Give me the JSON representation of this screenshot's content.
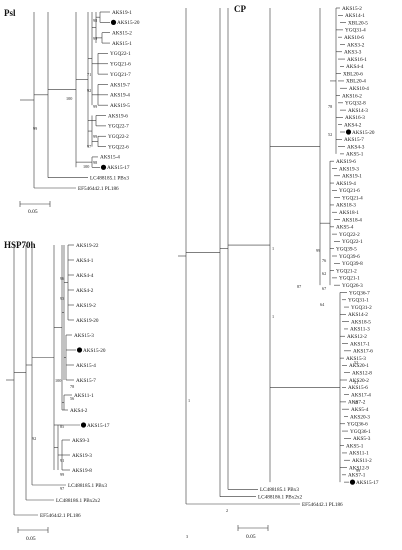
{
  "psl": {
    "title": "Psl",
    "leaves": [
      "AKS19-1",
      "AKS15-20",
      "AKS15-2",
      "AKS15-1",
      "YGQ22-1",
      "YGQ21-6",
      "YGQ21-7",
      "AKS19-7",
      "AKS19-4",
      "AKS19-5",
      "AKS19-6",
      "YGQ22-7",
      "YGQ22-2",
      "YGQ22-6",
      "AKS15-4",
      "AKS15-17",
      "LC488185.1 PBx3",
      "EF546442.1 PL186"
    ],
    "marked": [
      "AKS15-20",
      "AKS15-17"
    ],
    "bootstrap": [
      "98",
      "99",
      "71",
      "92",
      "99",
      "100",
      "99",
      "97",
      "98",
      "100",
      "99"
    ],
    "scale": "0.05"
  },
  "hsp70h": {
    "title": "HSP70h",
    "leaves": [
      "AKS19-22",
      "AKS4-1",
      "AKS4-4",
      "AKS4-2",
      "AKS19-2",
      "AKS19-20",
      "AKS15-3",
      "AKS15-20",
      "AKS15-4",
      "AKS15-7",
      "AKS11-1",
      "AKS4-2",
      "AKS15-17",
      "AKS9-3",
      "AKS19-3",
      "AKS19-8",
      "LC488185.1 PBx3",
      "LC488186.1 PBx2x2",
      "EF546442.1 PL186"
    ],
    "marked": [
      "AKS15-20",
      "AKS15-17"
    ],
    "bootstrap": [
      "96",
      "93",
      "100",
      "78",
      "56",
      "85",
      "91",
      "99",
      "97",
      "92"
    ],
    "scale": "0.05"
  },
  "cp": {
    "title": "CP",
    "leaves": [
      "AKS15-2",
      "AKS14-1",
      "XBL20-5",
      "YGQ31-4",
      "AKS10-6",
      "AKS3-2",
      "AKS3-3",
      "AKS16-1",
      "AKS4-4",
      "XBL20-6",
      "XBL20-4",
      "AKS10-4",
      "AKS16-2",
      "YGQ32-8",
      "AKS14-3",
      "AKS16-3",
      "AKS4-2",
      "AKS15-20",
      "AKS15-7",
      "AKS4-3",
      "AKS5-1",
      "AKS19-6",
      "AKS19-3",
      "AKS19-1",
      "AKS19-4",
      "YGQ21-6",
      "YGQ21-4",
      "AKS18-3",
      "AKS18-1",
      "AKS18-4",
      "AKS5-4",
      "YGQ22-2",
      "YGQ22-1",
      "YGQ39-5",
      "YGQ39-6",
      "YGQ39-8",
      "YGQ21-2",
      "YGQ21-1",
      "YGQ26-3",
      "YGQ36-7",
      "YGQ31-1",
      "YGQ31-2",
      "AKS14-2",
      "AKS18-5",
      "AKS11-3",
      "AKS12-2",
      "AKS17-1",
      "AKS17-6",
      "AKS15-3",
      "AKS20-1",
      "AKS12-8",
      "AKS20-2",
      "AKS15-6",
      "AKS17-4",
      "AKS7-2",
      "AKS5-4",
      "AKS20-3",
      "YGQ36-6",
      "YGQ36-1",
      "AKS5-3",
      "AKS5-1",
      "AKS11-1",
      "AKS11-2",
      "AKS12-9",
      "AKS7-1",
      "AKS15-17",
      "LC488185.1 PBx3",
      "LC488186.1 PBx2x2",
      "EF546442.1 PL186"
    ],
    "marked": [
      "AKS15-20",
      "AKS15-17"
    ],
    "bootstrap": [
      "78",
      "52",
      "99",
      "76",
      "62",
      "67",
      "64",
      "87",
      "1",
      "1",
      "1",
      "52",
      "51",
      "58",
      "99",
      "3",
      "2"
    ],
    "scale": "0.05"
  }
}
